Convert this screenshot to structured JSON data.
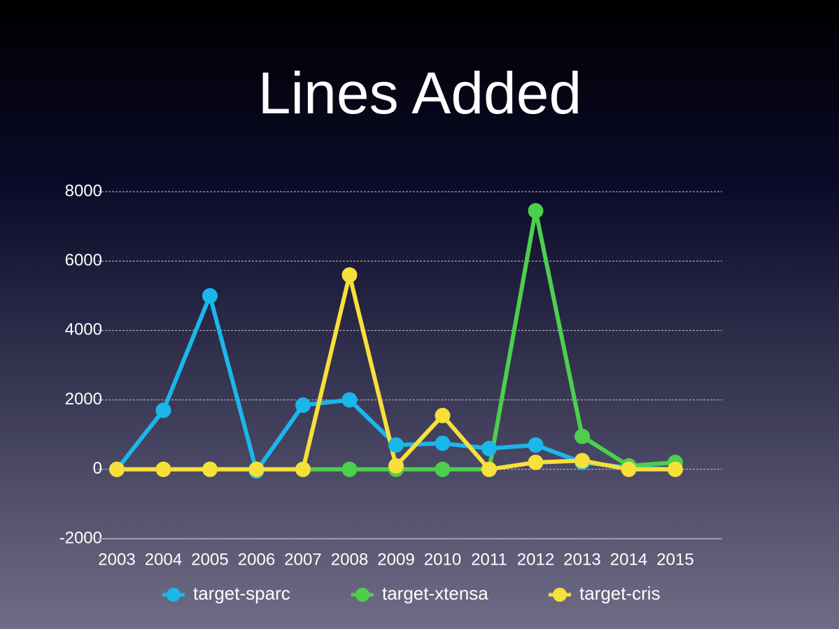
{
  "chart_data": {
    "type": "line",
    "title": "Lines Added",
    "categories": [
      "2003",
      "2004",
      "2005",
      "2006",
      "2007",
      "2008",
      "2009",
      "2010",
      "2011",
      "2012",
      "2013",
      "2014",
      "2015"
    ],
    "series": [
      {
        "name": "target-sparc",
        "color": "#1ab7ea",
        "values": [
          0,
          1700,
          5000,
          -50,
          1850,
          2000,
          700,
          750,
          600,
          700,
          200,
          50,
          0
        ]
      },
      {
        "name": "target-xtensa",
        "color": "#4cd04c",
        "values": [
          0,
          0,
          0,
          0,
          0,
          0,
          0,
          0,
          0,
          7450,
          950,
          100,
          200
        ]
      },
      {
        "name": "target-cris",
        "color": "#f7e03a",
        "values": [
          0,
          0,
          0,
          0,
          0,
          5600,
          100,
          1550,
          0,
          200,
          250,
          0,
          0
        ]
      }
    ],
    "ylim": [
      -2000,
      8000
    ],
    "yticks": [
      -2000,
      0,
      2000,
      4000,
      6000,
      8000
    ],
    "grid": true,
    "legend": "bottom"
  }
}
